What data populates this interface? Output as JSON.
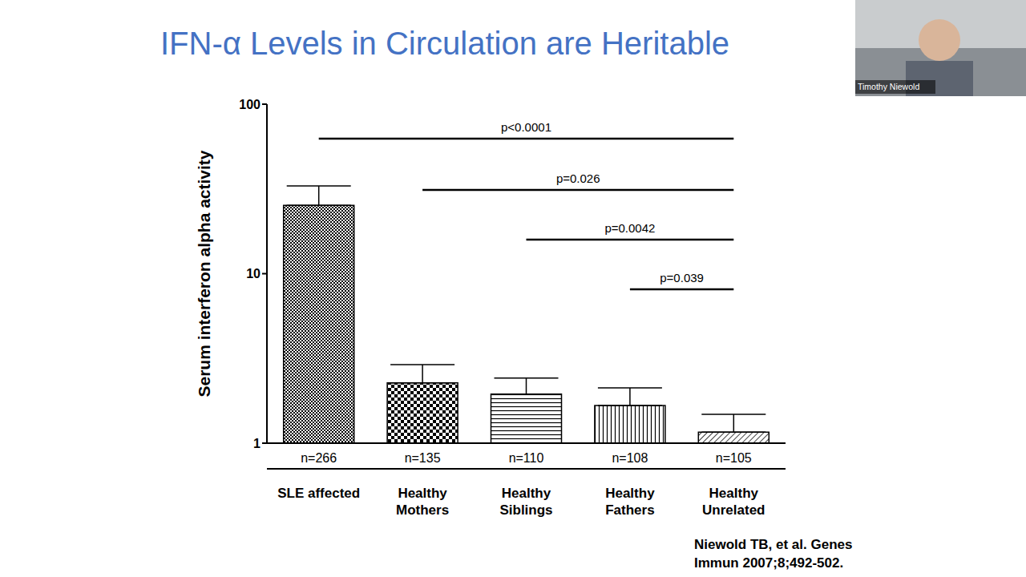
{
  "chart_data": {
    "type": "bar",
    "title": "IFN-α Levels in Circulation are Heritable",
    "y_label": "Serum interferon alpha activity",
    "categories": [
      "SLE affected",
      "Healthy Mothers",
      "Healthy Siblings",
      "Healthy Fathers",
      "Healthy Unrelated"
    ],
    "values": [
      25.3,
      2.27,
      1.95,
      1.67,
      1.16
    ],
    "errors": [
      7.6,
      0.64,
      0.47,
      0.45,
      0.32
    ],
    "n_labels": [
      "n=266",
      "n=135",
      "n=110",
      "n=108",
      "n=105"
    ],
    "comparisons": [
      {
        "from": "SLE affected",
        "to": "Healthy Unrelated",
        "label": "p<0.0001"
      },
      {
        "from": "Healthy Mothers",
        "to": "Healthy Unrelated",
        "label": "p=0.026"
      },
      {
        "from": "Healthy Siblings",
        "to": "Healthy Unrelated",
        "label": "p=0.0042"
      },
      {
        "from": "Healthy Fathers",
        "to": "Healthy Unrelated",
        "label": "p=0.039"
      }
    ],
    "annotations": [
      "Niewold TB, et al. Genes Immun 2007;8;492-502."
    ],
    "log": "y",
    "ylim": [
      1,
      100
    ],
    "yticks": [
      1,
      10,
      100
    ],
    "grid": false,
    "color": "#000000"
  },
  "video_overlay": {
    "name": "Timothy Niewold"
  }
}
